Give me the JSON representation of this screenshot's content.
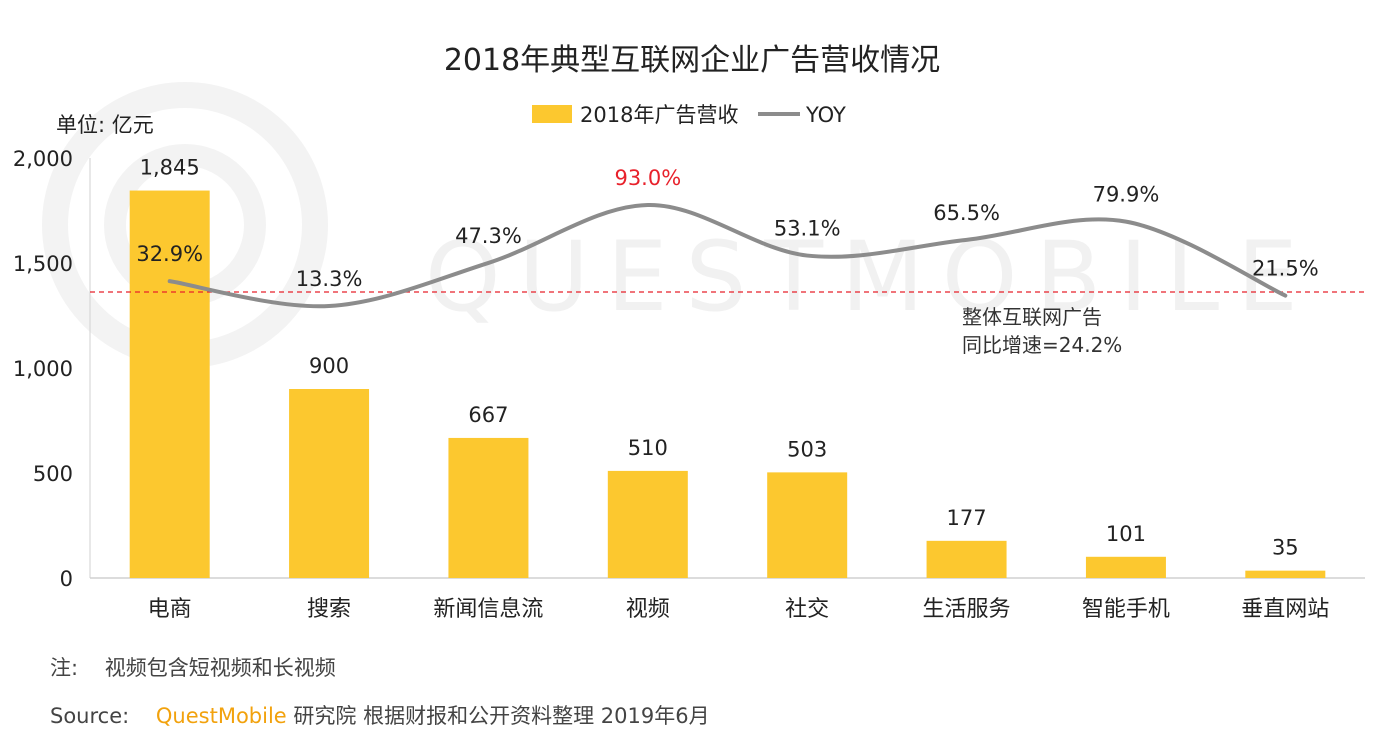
{
  "chart_data": {
    "type": "bar",
    "title": "2018年典型互联网企业广告营收情况",
    "unit_label": "单位: 亿元",
    "categories": [
      "电商",
      "搜索",
      "新闻信息流",
      "视频",
      "社交",
      "生活服务",
      "智能手机",
      "垂直网站"
    ],
    "series": [
      {
        "name": "2018年广告营收",
        "type": "bar",
        "color": "#fcc82f",
        "values": [
          1845,
          900,
          667,
          510,
          503,
          177,
          101,
          35
        ],
        "labels": [
          "1,845",
          "900",
          "667",
          "510",
          "503",
          "177",
          "101",
          "35"
        ]
      },
      {
        "name": "YOY",
        "type": "line",
        "color": "#8c8c8c",
        "values": [
          32.9,
          13.3,
          47.3,
          93.0,
          53.1,
          65.5,
          79.9,
          21.5
        ],
        "labels": [
          "32.9%",
          "13.3%",
          "47.3%",
          "93.0%",
          "53.1%",
          "65.5%",
          "79.9%",
          "21.5%"
        ],
        "highlight_index": 3,
        "highlight_color": "#e8212b"
      }
    ],
    "yaxis": {
      "ylim": [
        0,
        2000
      ],
      "ticks": [
        0,
        500,
        1000,
        1500,
        2000
      ],
      "tick_labels": [
        "0",
        "500",
        "1,000",
        "1,500",
        "2,000"
      ]
    },
    "yoy_axis_range": [
      0,
      100
    ],
    "reference_line": {
      "value": 24.2,
      "color": "#e8212b",
      "style": "dashed",
      "label_line1": "整体互联网广告",
      "label_line2": "同比增速=24.2%"
    },
    "legend_position": "top-center"
  },
  "watermark": {
    "text": "QUESTMOBILE"
  },
  "notes": {
    "note_label": "注:",
    "note_text": "视频包含短视频和长视频",
    "source_label": "Source:",
    "source_brand": "QuestMobile",
    "source_rest": "研究院  根据财报和公开资料整理 2019年6月"
  }
}
